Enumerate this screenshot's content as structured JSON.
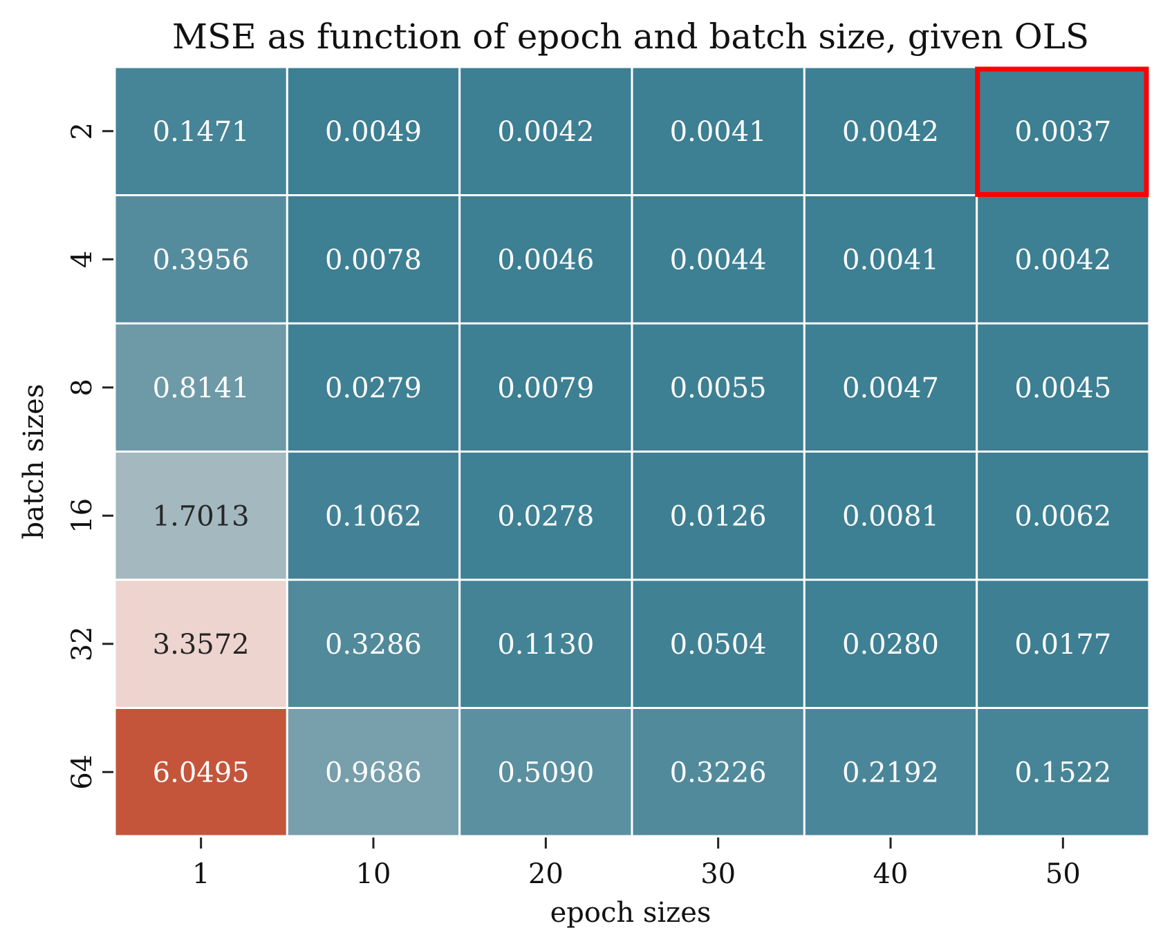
{
  "chart_data": {
    "type": "heatmap",
    "title": "MSE as function of epoch and batch size, given OLS",
    "xlabel": "epoch sizes",
    "ylabel": "batch sizes",
    "x_categories": [
      "1",
      "10",
      "20",
      "30",
      "40",
      "50"
    ],
    "y_categories": [
      "2",
      "4",
      "8",
      "16",
      "32",
      "64"
    ],
    "values": [
      [
        0.1471,
        0.0049,
        0.0042,
        0.0041,
        0.0042,
        0.0037
      ],
      [
        0.3956,
        0.0078,
        0.0046,
        0.0044,
        0.0041,
        0.0042
      ],
      [
        0.8141,
        0.0279,
        0.0079,
        0.0055,
        0.0047,
        0.0045
      ],
      [
        1.7013,
        0.1062,
        0.0278,
        0.0126,
        0.0081,
        0.0062
      ],
      [
        3.3572,
        0.3286,
        0.113,
        0.0504,
        0.028,
        0.0177
      ],
      [
        6.0495,
        0.9686,
        0.509,
        0.3226,
        0.2192,
        0.1522
      ]
    ],
    "value_format": "0.0000",
    "colormap": [
      "#3d7f93",
      "#f2e4e1",
      "#c4553b"
    ],
    "vmin": 0.0037,
    "vmax": 6.0495,
    "colorbar": false,
    "grid_line_color": "#ffffff",
    "highlight": {
      "row": 0,
      "col": 5,
      "color": "#ff0000"
    }
  }
}
